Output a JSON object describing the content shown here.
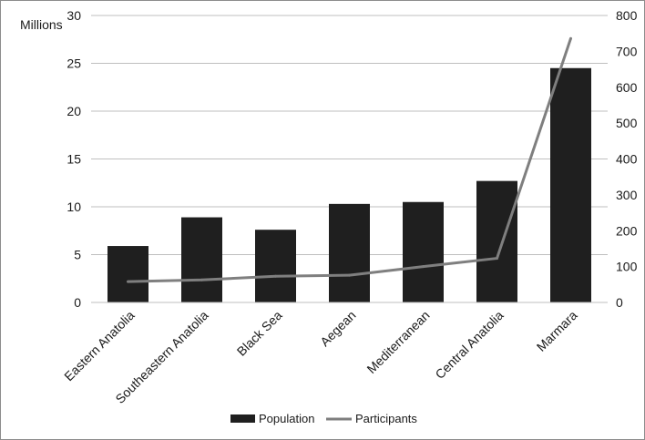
{
  "chart_data": {
    "type": "bar",
    "title": "",
    "xlabel": "",
    "ylabel": "Millions",
    "y2label": "",
    "categories": [
      "Eastern Anatolia",
      "Southeastern Anatolia",
      "Black Sea",
      "Aegean",
      "Mediterranean",
      "Central Anatolia",
      "Marmara"
    ],
    "series": [
      {
        "name": "Population",
        "type": "bar",
        "axis": "left",
        "color": "#1f1f1f",
        "values": [
          5.9,
          8.9,
          7.6,
          10.3,
          10.5,
          12.7,
          24.5
        ]
      },
      {
        "name": "Participants",
        "type": "line",
        "axis": "right",
        "color": "#7f7f7f",
        "values": [
          58,
          63,
          73,
          76,
          100,
          123,
          736
        ]
      }
    ],
    "ylim": [
      0,
      30
    ],
    "yticks": [
      0,
      5,
      10,
      15,
      20,
      25,
      30
    ],
    "y2lim": [
      0,
      800
    ],
    "y2ticks": [
      0,
      100,
      200,
      300,
      400,
      500,
      600,
      700,
      800
    ],
    "grid": "horizontal",
    "legend_position": "bottom"
  }
}
